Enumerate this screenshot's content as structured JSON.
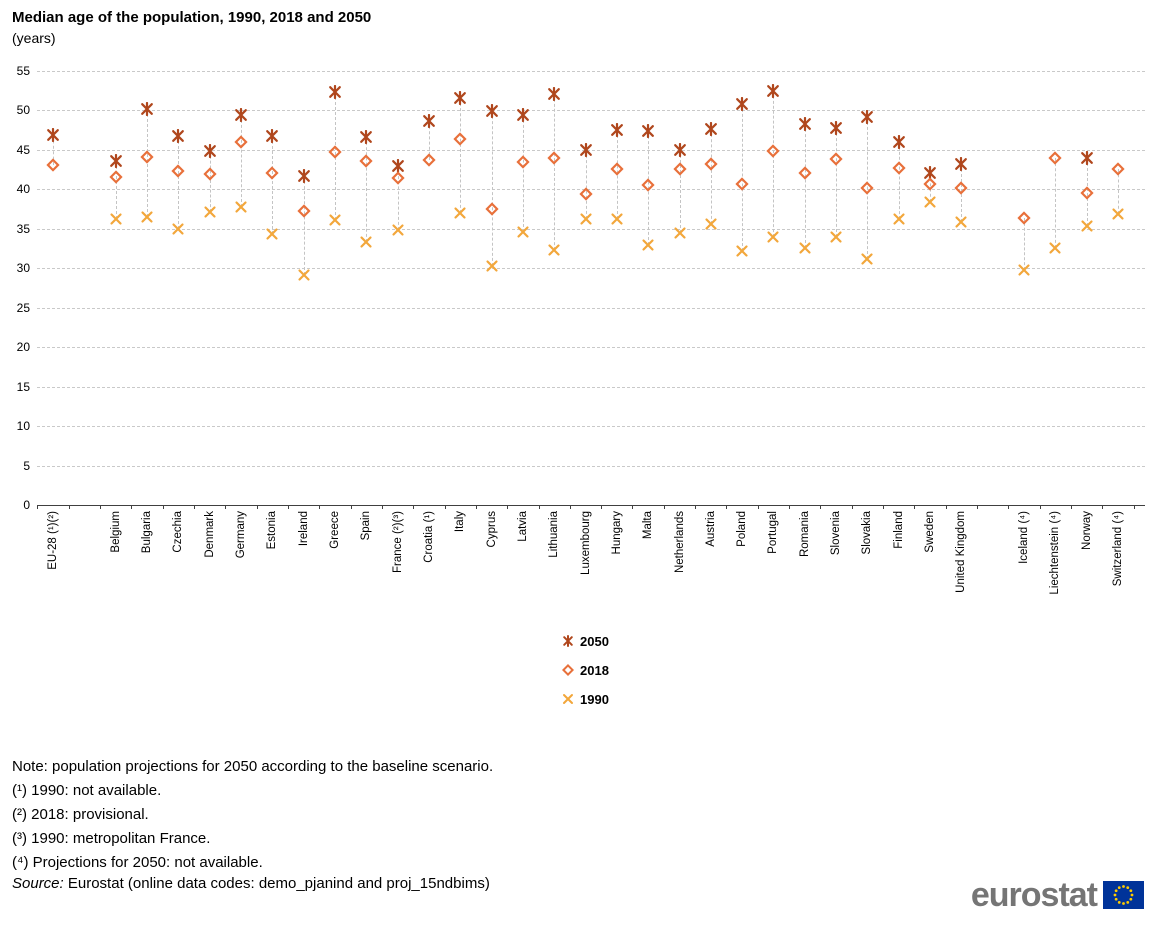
{
  "chart_data": {
    "type": "scatter",
    "title": "Median age of the population, 1990, 2018 and 2050",
    "subtitle": "(years)",
    "ylabel": "",
    "xlabel": "",
    "ylim": [
      0,
      55
    ],
    "yticks": [
      0,
      5,
      10,
      15,
      20,
      25,
      30,
      35,
      40,
      45,
      50,
      55
    ],
    "grid": "horizontal-dashed",
    "legend_position": "center-below",
    "categories": [
      "EU-28 (¹)(²)",
      "",
      "Belgium",
      "Bulgaria",
      "Czechia",
      "Denmark",
      "Germany",
      "Estonia",
      "Ireland",
      "Greece",
      "Spain",
      "France (²)(³)",
      "Croatia (¹)",
      "Italy",
      "Cyprus",
      "Latvia",
      "Lithuania",
      "Luxembourg",
      "Hungary",
      "Malta",
      "Netherlands",
      "Austria",
      "Poland",
      "Portugal",
      "Romania",
      "Slovenia",
      "Slovakia",
      "Finland",
      "Sweden",
      "United Kingdom",
      "",
      "Iceland (⁴)",
      "Liechtenstein (⁴)",
      "Norway",
      "Switzerland (⁴)"
    ],
    "series": [
      {
        "name": "2050",
        "marker": "asterisk",
        "color": "#b0471d",
        "values": [
          46.9,
          null,
          43.6,
          50.2,
          46.8,
          44.9,
          49.4,
          46.8,
          41.7,
          52.3,
          46.6,
          43.0,
          48.7,
          51.6,
          49.9,
          49.4,
          52.0,
          45.0,
          47.5,
          47.4,
          45.0,
          47.6,
          50.8,
          52.5,
          48.3,
          47.8,
          49.1,
          46.0,
          42.0,
          43.2,
          null,
          null,
          null,
          44.0,
          null
        ]
      },
      {
        "name": "2018",
        "marker": "diamond",
        "color": "#e8703a",
        "values": [
          43.1,
          null,
          41.5,
          44.1,
          42.3,
          41.9,
          46.0,
          42.0,
          37.3,
          44.7,
          43.6,
          41.4,
          43.7,
          46.3,
          37.5,
          43.4,
          43.9,
          39.4,
          42.6,
          40.5,
          42.6,
          43.2,
          40.6,
          44.9,
          42.1,
          43.8,
          40.2,
          42.7,
          40.6,
          40.1,
          null,
          36.3,
          43.9,
          39.5,
          42.5
        ]
      },
      {
        "name": "1990",
        "marker": "x",
        "color": "#f2a73b",
        "values": [
          null,
          null,
          36.2,
          36.5,
          35.0,
          37.1,
          37.7,
          34.3,
          29.1,
          36.1,
          33.3,
          34.8,
          null,
          37.0,
          30.3,
          34.6,
          32.3,
          36.2,
          36.2,
          32.9,
          34.4,
          35.6,
          32.2,
          33.9,
          32.6,
          33.9,
          31.1,
          36.2,
          38.4,
          35.8,
          null,
          29.8,
          32.5,
          35.3,
          36.9
        ]
      }
    ]
  },
  "notes": [
    "Note: population projections for 2050 according to the baseline scenario.",
    "(¹) 1990: not available.",
    "(²) 2018: provisional.",
    "(³) 1990: metropolitan France.",
    "(⁴) Projections for 2050: not available."
  ],
  "source": {
    "prefix": "Source:",
    "text": " Eurostat (online data codes: demo_pjanind and proj_15ndbims)"
  },
  "logo": {
    "text": "eurostat",
    "flag_blue": "#003399",
    "flag_star_yellow": "#ffcc00"
  }
}
